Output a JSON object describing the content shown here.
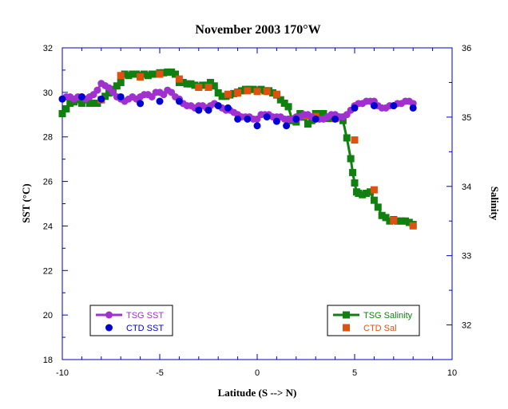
{
  "chart_data": {
    "type": "line",
    "title": "November 2003 170°W",
    "xlabel": "Latitude (S --> N)",
    "ylabel_left": "SST (°C)",
    "ylabel_right": "Salinity",
    "xlim": [
      -10,
      10
    ],
    "ylim_left": [
      18,
      32
    ],
    "ylim_right": [
      31.5,
      36
    ],
    "x_ticks": [
      -10,
      -5,
      0,
      5,
      10
    ],
    "y_left_ticks": [
      18,
      20,
      22,
      24,
      26,
      28,
      30,
      32
    ],
    "y_right_ticks": [
      32,
      33,
      34,
      35,
      36
    ],
    "grid": false,
    "colors": {
      "tsg_sst": "#a030d0",
      "ctd_sst": "#0000d0",
      "tsg_salinity": "#108010",
      "ctd_sal": "#e05010",
      "axis": "#0000c8"
    },
    "legends": [
      {
        "placement": "bottom-left",
        "entries": [
          {
            "label": "TSG SST",
            "series": "tsg_sst"
          },
          {
            "label": "CTD SST",
            "series": "ctd_sst"
          }
        ]
      },
      {
        "placement": "bottom-right",
        "entries": [
          {
            "label": "TSG Salinity",
            "series": "tsg_salinity"
          },
          {
            "label": "CTD Sal",
            "series": "ctd_sal"
          }
        ]
      }
    ],
    "series": [
      {
        "name": "TSG SST",
        "key": "tsg_sst",
        "axis": "left",
        "style": "line-circle",
        "x": [
          -10,
          -9.8,
          -9.6,
          -9.4,
          -9.2,
          -9,
          -8.8,
          -8.6,
          -8.4,
          -8.2,
          -8.0,
          -7.8,
          -7.6,
          -7.4,
          -7.2,
          -7.0,
          -6.8,
          -6.6,
          -6.4,
          -6.2,
          -6.0,
          -5.8,
          -5.6,
          -5.4,
          -5.2,
          -5.0,
          -4.8,
          -4.6,
          -4.4,
          -4.2,
          -4.0,
          -3.8,
          -3.6,
          -3.4,
          -3.2,
          -3.0,
          -2.8,
          -2.6,
          -2.4,
          -2.2,
          -2.0,
          -1.8,
          -1.6,
          -1.4,
          -1.2,
          -1.0,
          -0.8,
          -0.6,
          -0.4,
          -0.2,
          0.0,
          0.2,
          0.4,
          0.6,
          0.8,
          1.0,
          1.2,
          1.4,
          1.6,
          1.8,
          2.0,
          2.2,
          2.4,
          2.6,
          2.8,
          3.0,
          3.2,
          3.4,
          3.6,
          3.8,
          4.0,
          4.2,
          4.4,
          4.6,
          4.8,
          5.0,
          5.2,
          5.4,
          5.6,
          5.8,
          6.0,
          6.2,
          6.4,
          6.6,
          6.8,
          7.0,
          7.2,
          7.4,
          7.6,
          7.8,
          8.0
        ],
        "values": [
          29.7,
          29.8,
          29.8,
          29.7,
          29.8,
          29.8,
          29.7,
          29.8,
          29.9,
          30.1,
          30.4,
          30.3,
          30.2,
          30.0,
          29.8,
          29.7,
          29.6,
          29.7,
          29.8,
          29.7,
          29.8,
          29.9,
          29.9,
          29.8,
          30.0,
          30.0,
          29.9,
          30.1,
          30.0,
          29.8,
          29.7,
          29.5,
          29.4,
          29.4,
          29.3,
          29.4,
          29.4,
          29.3,
          29.4,
          29.5,
          29.4,
          29.3,
          29.2,
          29.2,
          29.1,
          29.0,
          28.9,
          28.9,
          28.9,
          28.8,
          28.8,
          29.0,
          29.0,
          29.0,
          28.9,
          28.9,
          28.9,
          28.8,
          28.8,
          28.8,
          28.9,
          28.9,
          29.0,
          29.0,
          28.9,
          28.8,
          28.8,
          28.8,
          28.9,
          29.0,
          29.0,
          28.9,
          28.9,
          29.0,
          29.2,
          29.4,
          29.5,
          29.5,
          29.6,
          29.6,
          29.6,
          29.4,
          29.3,
          29.3,
          29.4,
          29.4,
          29.5,
          29.5,
          29.6,
          29.6,
          29.5
        ]
      },
      {
        "name": "CTD SST",
        "key": "ctd_sst",
        "axis": "left",
        "style": "circle",
        "x": [
          -10,
          -9,
          -8,
          -7,
          -6,
          -5,
          -4,
          -3,
          -2.5,
          -2,
          -1.5,
          -1,
          -0.5,
          0,
          0.5,
          1,
          1.5,
          2,
          3,
          4,
          5,
          6,
          7,
          8
        ],
        "values": [
          29.7,
          29.8,
          29.7,
          29.8,
          29.5,
          29.6,
          29.6,
          29.2,
          29.2,
          29.4,
          29.3,
          28.8,
          28.8,
          28.5,
          28.9,
          28.7,
          28.5,
          28.8,
          28.8,
          28.8,
          29.3,
          29.4,
          29.4,
          29.3
        ]
      },
      {
        "name": "TSG Salinity",
        "key": "tsg_salinity",
        "axis": "right",
        "style": "line-square",
        "x": [
          -10,
          -9.8,
          -9.6,
          -9.4,
          -9.2,
          -9.0,
          -8.8,
          -8.6,
          -8.4,
          -8.2,
          -8.0,
          -7.8,
          -7.6,
          -7.4,
          -7.2,
          -7.0,
          -6.8,
          -6.6,
          -6.4,
          -6.2,
          -6.0,
          -5.8,
          -5.6,
          -5.4,
          -5.2,
          -5.0,
          -4.8,
          -4.6,
          -4.4,
          -4.2,
          -4.0,
          -3.8,
          -3.6,
          -3.4,
          -3.2,
          -3.0,
          -2.8,
          -2.6,
          -2.4,
          -2.2,
          -2.0,
          -1.8,
          -1.6,
          -1.4,
          -1.2,
          -1.0,
          -0.8,
          -0.6,
          -0.4,
          -0.2,
          0.0,
          0.2,
          0.4,
          0.6,
          0.8,
          1.0,
          1.2,
          1.4,
          1.6,
          1.8,
          2.0,
          2.2,
          2.4,
          2.6,
          2.8,
          3.0,
          3.2,
          3.4,
          3.6,
          3.8,
          4.0,
          4.2,
          4.4,
          4.6,
          4.8,
          4.9,
          5.0,
          5.1,
          5.2,
          5.4,
          5.6,
          5.8,
          6.0,
          6.2,
          6.4,
          6.6,
          6.8,
          7.0,
          7.2,
          7.4,
          7.6,
          7.8,
          8.0
        ],
        "values": [
          35.05,
          35.12,
          35.2,
          35.22,
          35.25,
          35.2,
          35.25,
          35.2,
          35.2,
          35.2,
          35.25,
          35.3,
          35.35,
          35.4,
          35.45,
          35.5,
          35.62,
          35.6,
          35.62,
          35.62,
          35.6,
          35.62,
          35.6,
          35.62,
          35.62,
          35.64,
          35.64,
          35.65,
          35.65,
          35.62,
          35.5,
          35.5,
          35.48,
          35.48,
          35.46,
          35.44,
          35.46,
          35.46,
          35.5,
          35.45,
          35.35,
          35.3,
          35.3,
          35.32,
          35.34,
          35.36,
          35.38,
          35.4,
          35.4,
          35.4,
          35.38,
          35.4,
          35.38,
          35.38,
          35.35,
          35.32,
          35.25,
          35.2,
          35.15,
          34.95,
          34.93,
          35.05,
          35.0,
          34.9,
          34.95,
          35.05,
          35.05,
          35.05,
          34.98,
          34.98,
          34.98,
          35.0,
          34.95,
          34.7,
          34.4,
          34.2,
          34.05,
          33.92,
          33.9,
          33.88,
          33.9,
          33.92,
          33.8,
          33.7,
          33.58,
          33.55,
          33.5,
          33.52,
          33.5,
          33.5,
          33.5,
          33.48,
          33.45
        ]
      },
      {
        "name": "CTD Sal",
        "key": "ctd_sal",
        "axis": "right",
        "style": "square",
        "x": [
          -8,
          -7,
          -6,
          -5,
          -4,
          -3,
          -2.5,
          -1.5,
          -1,
          -0.5,
          0,
          0.5,
          1,
          2,
          2.5,
          3,
          4,
          5,
          6,
          7,
          8
        ],
        "values": [
          35.25,
          35.6,
          35.58,
          35.62,
          35.55,
          35.43,
          35.43,
          35.33,
          35.35,
          35.38,
          35.37,
          35.37,
          35.33,
          34.98,
          35.02,
          35.01,
          34.98,
          34.67,
          33.95,
          33.51,
          33.43
        ]
      }
    ]
  }
}
